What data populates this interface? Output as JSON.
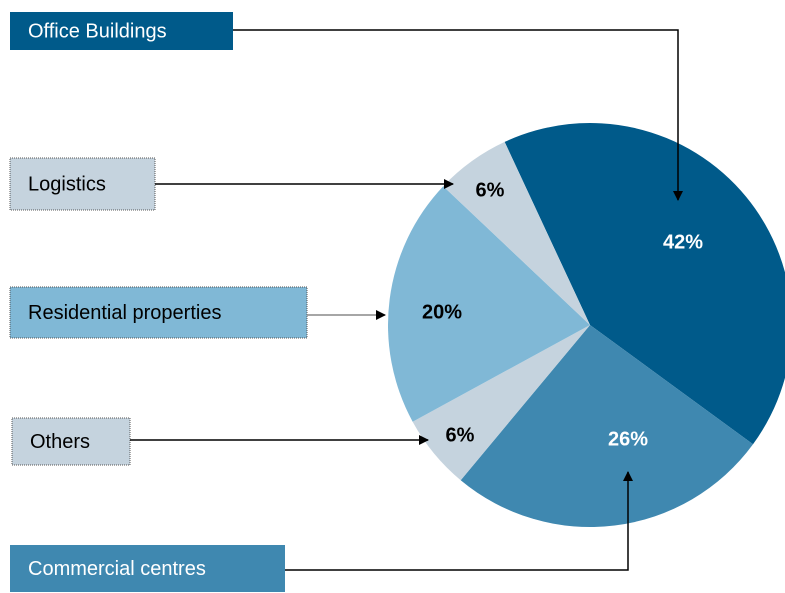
{
  "chart_data": {
    "type": "pie",
    "categories": [
      "Office Buildings",
      "Commercial centres",
      "Others",
      "Residential properties",
      "Logistics"
    ],
    "values": [
      42,
      26,
      6,
      20,
      6
    ],
    "value_labels": [
      "42%",
      "26%",
      "6%",
      "20%",
      "6%"
    ],
    "colors": [
      "#005a8a",
      "#3f88b0",
      "#c5d3de",
      "#80b8d6",
      "#c5d3de"
    ]
  }
}
